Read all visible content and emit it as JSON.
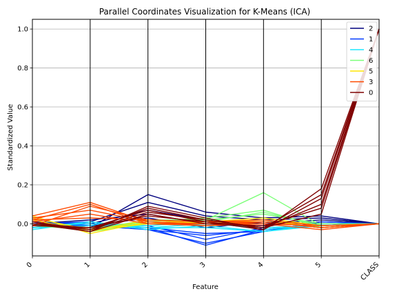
{
  "chart_data": {
    "type": "line",
    "title": "Parallel Coordinates Visualization for K-Means (ICA)",
    "xlabel": "Feature",
    "ylabel": "Standardized Value",
    "categories": [
      "0",
      "1",
      "2",
      "3",
      "4",
      "5",
      "CLASS"
    ],
    "ylim": [
      -0.165,
      1.05
    ],
    "yticks": [
      0.0,
      0.2,
      0.4,
      0.6,
      0.8,
      1.0
    ],
    "ytick_labels": [
      "0.0",
      "0.2",
      "0.4",
      "0.6",
      "0.8",
      "1.0"
    ],
    "grid": true,
    "legend_position": "top-right",
    "series": [
      {
        "name": "2",
        "color": "#00007f",
        "lines": [
          [
            0.0,
            -0.02,
            0.15,
            0.06,
            0.03,
            0.04,
            0.0
          ],
          [
            -0.01,
            0.01,
            0.11,
            0.04,
            0.02,
            0.03,
            0.0
          ],
          [
            0.01,
            0.0,
            0.07,
            0.02,
            0.0,
            0.02,
            0.0
          ],
          [
            0.0,
            0.02,
            0.05,
            0.0,
            -0.01,
            0.01,
            0.0
          ],
          [
            -0.02,
            -0.01,
            0.03,
            -0.02,
            0.01,
            0.0,
            0.0
          ]
        ]
      },
      {
        "name": "1",
        "color": "#0039ff",
        "lines": [
          [
            -0.01,
            -0.01,
            -0.02,
            -0.11,
            -0.03,
            -0.01,
            0.0
          ],
          [
            0.0,
            0.01,
            -0.03,
            -0.1,
            -0.04,
            0.0,
            0.0
          ],
          [
            -0.02,
            0.0,
            -0.01,
            -0.08,
            -0.02,
            -0.01,
            0.0
          ],
          [
            0.01,
            -0.01,
            -0.03,
            -0.06,
            -0.03,
            0.0,
            0.0
          ],
          [
            0.0,
            0.0,
            -0.02,
            -0.05,
            -0.04,
            0.01,
            0.0
          ]
        ]
      },
      {
        "name": "4",
        "color": "#1ce7ff",
        "lines": [
          [
            -0.03,
            0.01,
            -0.02,
            -0.02,
            -0.04,
            -0.01,
            0.0
          ],
          [
            -0.02,
            -0.01,
            -0.01,
            0.01,
            -0.03,
            0.0,
            0.0
          ],
          [
            -0.01,
            0.0,
            -0.02,
            0.0,
            -0.02,
            -0.01,
            0.0
          ],
          [
            -0.02,
            0.01,
            -0.03,
            -0.01,
            -0.04,
            0.0,
            0.0
          ]
        ]
      },
      {
        "name": "6",
        "color": "#7cff79",
        "lines": [
          [
            0.0,
            -0.04,
            0.0,
            0.02,
            0.16,
            -0.01,
            0.0
          ],
          [
            0.01,
            -0.03,
            0.01,
            0.03,
            0.07,
            -0.02,
            0.0
          ],
          [
            0.0,
            -0.02,
            0.0,
            0.01,
            0.06,
            -0.01,
            0.0
          ],
          [
            -0.01,
            -0.03,
            0.02,
            0.02,
            0.05,
            0.0,
            0.0
          ]
        ]
      },
      {
        "name": "5",
        "color": "#ffe600",
        "lines": [
          [
            0.04,
            -0.05,
            0.01,
            0.0,
            0.02,
            -0.02,
            0.0
          ],
          [
            0.03,
            -0.03,
            0.0,
            0.01,
            0.03,
            -0.01,
            0.0
          ],
          [
            0.02,
            -0.04,
            0.02,
            0.0,
            0.01,
            -0.02,
            0.0
          ]
        ]
      },
      {
        "name": "3",
        "color": "#ff4a00",
        "lines": [
          [
            0.04,
            0.11,
            0.01,
            -0.01,
            0.01,
            -0.02,
            0.0
          ],
          [
            0.02,
            0.1,
            0.0,
            0.0,
            0.0,
            -0.03,
            0.0
          ],
          [
            -0.01,
            0.09,
            0.02,
            0.01,
            0.02,
            -0.01,
            0.0
          ],
          [
            0.03,
            0.07,
            0.01,
            0.0,
            0.01,
            -0.02,
            0.0
          ],
          [
            0.01,
            0.05,
            0.0,
            -0.01,
            0.0,
            -0.01,
            0.0
          ],
          [
            0.02,
            0.03,
            0.02,
            0.01,
            0.01,
            -0.02,
            0.0
          ]
        ]
      },
      {
        "name": "0",
        "color": "#7f0000",
        "lines": [
          [
            0.0,
            -0.04,
            0.09,
            0.03,
            -0.03,
            0.18,
            1.0
          ],
          [
            0.01,
            -0.03,
            0.08,
            0.02,
            -0.02,
            0.15,
            1.0
          ],
          [
            -0.01,
            -0.02,
            0.07,
            0.01,
            -0.03,
            0.13,
            1.0
          ],
          [
            0.0,
            -0.03,
            0.06,
            0.02,
            -0.02,
            0.1,
            1.0
          ],
          [
            0.01,
            -0.04,
            0.05,
            0.0,
            -0.01,
            0.08,
            1.0
          ],
          [
            0.0,
            -0.02,
            0.04,
            0.01,
            -0.02,
            0.05,
            1.0
          ]
        ]
      }
    ]
  }
}
